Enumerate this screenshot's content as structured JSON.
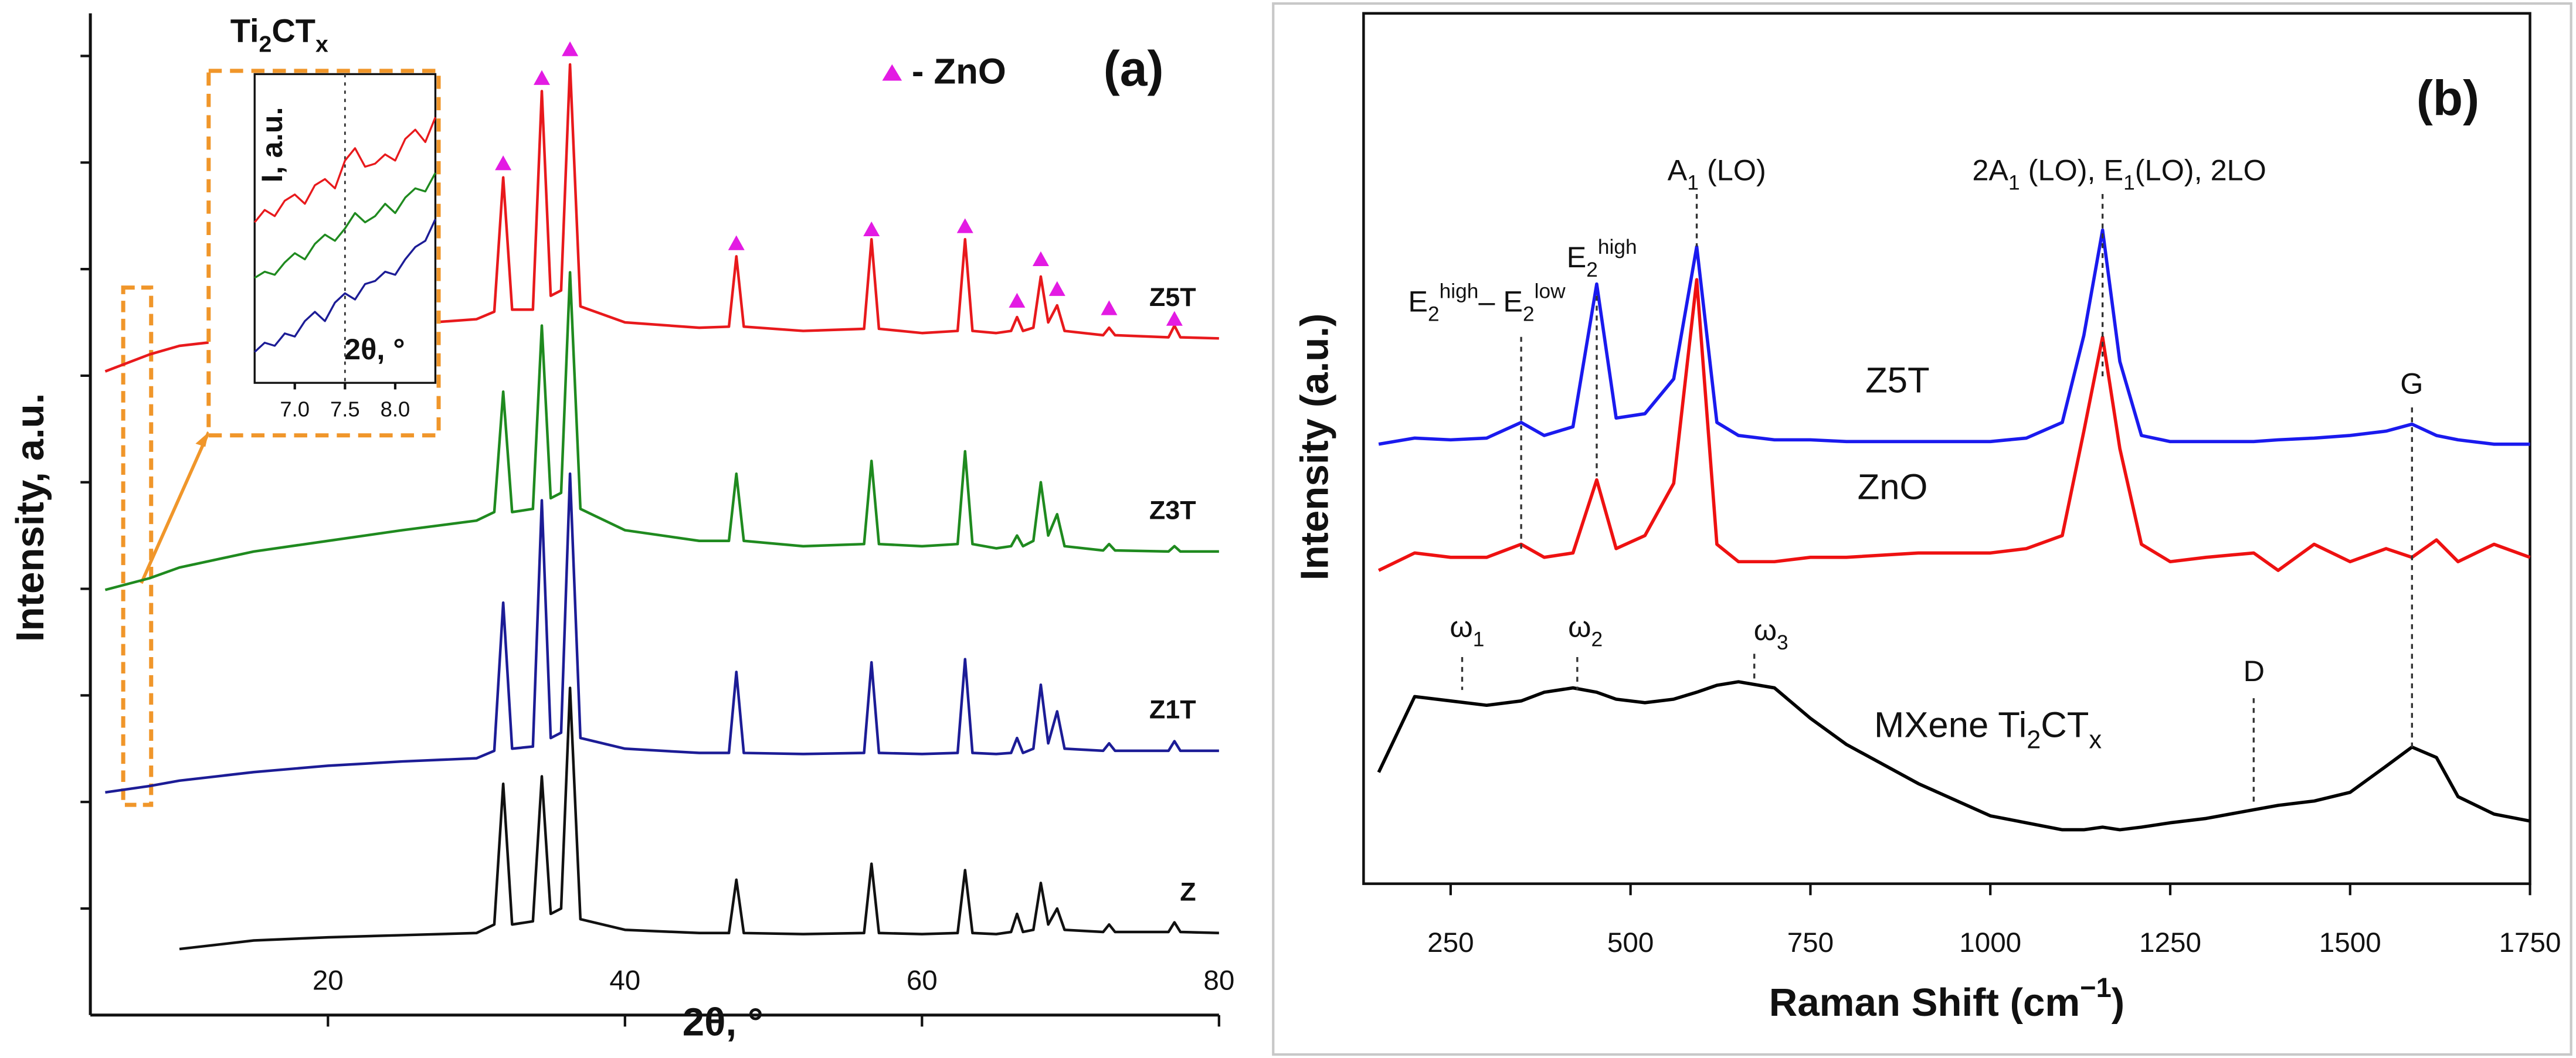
{
  "chart_data": [
    {
      "type": "line",
      "panel": "(a)",
      "ylabel": "Intensity, a.u.",
      "xlabel": "2θ, °",
      "xlim": [
        4,
        80
      ],
      "xticks": [
        20,
        40,
        60,
        80
      ],
      "ylim": [
        0,
        9.4
      ],
      "yticks": [
        1,
        2,
        3,
        4,
        5,
        6,
        7,
        8,
        9
      ],
      "x": [
        5,
        8,
        10,
        15,
        20,
        25,
        30,
        31.2,
        31.8,
        32.4,
        33.8,
        34.4,
        35.0,
        35.7,
        36.3,
        37.0,
        40,
        45,
        47.0,
        47.5,
        48.0,
        52,
        56.1,
        56.6,
        57.1,
        60,
        62.4,
        62.9,
        63.4,
        65,
        66.0,
        66.4,
        66.8,
        67.5,
        68.0,
        68.5,
        69.1,
        69.6,
        72.2,
        72.6,
        73.0,
        76.6,
        77.0,
        77.4,
        80
      ],
      "series": [
        {
          "name": "Z5T",
          "color": "#e8191c",
          "values": [
            6.04,
            6.2,
            6.28,
            6.36,
            6.42,
            6.48,
            6.53,
            6.6,
            7.86,
            6.62,
            6.62,
            8.67,
            6.75,
            6.8,
            8.92,
            6.65,
            6.5,
            6.45,
            6.46,
            7.12,
            6.46,
            6.42,
            6.44,
            7.28,
            6.44,
            6.4,
            6.42,
            7.28,
            6.42,
            6.4,
            6.42,
            6.55,
            6.42,
            6.45,
            6.93,
            6.5,
            6.66,
            6.42,
            6.38,
            6.45,
            6.38,
            6.36,
            6.47,
            6.36,
            6.35
          ]
        },
        {
          "name": "Z3T",
          "color": "#1f8a1f",
          "values": [
            3.99,
            4.1,
            4.2,
            4.35,
            4.45,
            4.55,
            4.64,
            4.72,
            5.85,
            4.72,
            4.75,
            6.47,
            4.85,
            4.9,
            6.97,
            4.75,
            4.55,
            4.45,
            4.45,
            5.08,
            4.45,
            4.4,
            4.42,
            5.2,
            4.42,
            4.4,
            4.42,
            5.29,
            4.42,
            4.38,
            4.4,
            4.5,
            4.4,
            4.45,
            5.0,
            4.5,
            4.7,
            4.4,
            4.36,
            4.42,
            4.36,
            4.35,
            4.4,
            4.35,
            4.35
          ]
        },
        {
          "name": "Z1T",
          "color": "#1c1c96",
          "values": [
            2.09,
            2.15,
            2.2,
            2.28,
            2.34,
            2.38,
            2.41,
            2.48,
            3.87,
            2.5,
            2.52,
            4.83,
            2.6,
            2.65,
            5.08,
            2.6,
            2.5,
            2.46,
            2.46,
            3.22,
            2.46,
            2.45,
            2.46,
            3.31,
            2.46,
            2.45,
            2.46,
            3.34,
            2.46,
            2.45,
            2.46,
            2.6,
            2.46,
            2.5,
            3.1,
            2.55,
            2.85,
            2.5,
            2.48,
            2.55,
            2.48,
            2.48,
            2.57,
            2.48,
            2.48
          ]
        },
        {
          "name": "Z",
          "color": "#111111",
          "values": [
            null,
            null,
            0.62,
            0.7,
            0.73,
            0.75,
            0.77,
            0.85,
            2.17,
            0.85,
            0.88,
            2.24,
            0.95,
            1.0,
            3.07,
            0.9,
            0.8,
            0.77,
            0.77,
            1.27,
            0.77,
            0.76,
            0.77,
            1.42,
            0.77,
            0.76,
            0.77,
            1.36,
            0.77,
            0.76,
            0.78,
            0.95,
            0.78,
            0.8,
            1.24,
            0.85,
            1.0,
            0.8,
            0.78,
            0.85,
            0.78,
            0.78,
            0.87,
            0.78,
            0.77
          ]
        }
      ],
      "markers": {
        "name": "- ZnO",
        "color": "#e31be3",
        "x": [
          31.8,
          34.4,
          36.3,
          47.5,
          56.6,
          62.9,
          66.4,
          68.0,
          69.1,
          72.6,
          77.0
        ],
        "y": [
          7.99,
          8.79,
          9.06,
          7.24,
          7.37,
          7.4,
          6.7,
          7.09,
          6.81,
          6.63,
          6.53
        ]
      },
      "inset": {
        "type": "line",
        "title": [
          {
            "t": "Ti"
          },
          {
            "sub": "2"
          },
          {
            "t": "CT"
          },
          {
            "sub": "x"
          }
        ],
        "ylabel": "I, a.u.",
        "xlabel": "2θ, °",
        "xlim": [
          6.6,
          8.4
        ],
        "xticks": [
          {
            "value": 7,
            "label": "7.0"
          },
          7.5,
          {
            "value": 8,
            "label": "8.0"
          }
        ],
        "ylim": [
          0,
          10
        ],
        "vline": 7.5,
        "x": [
          6.6,
          6.7,
          6.8,
          6.9,
          7.0,
          7.1,
          7.2,
          7.3,
          7.4,
          7.5,
          7.6,
          7.7,
          7.8,
          7.9,
          8.0,
          8.1,
          8.2,
          8.3,
          8.4
        ],
        "series": [
          {
            "color": "#e8191c",
            "values": [
              5.2,
              5.6,
              5.4,
              5.9,
              6.1,
              5.8,
              6.4,
              6.6,
              6.3,
              7.2,
              7.6,
              7.0,
              7.1,
              7.4,
              7.2,
              7.9,
              8.2,
              7.8,
              8.6
            ]
          },
          {
            "color": "#1f8a1f",
            "values": [
              3.4,
              3.6,
              3.5,
              3.9,
              4.2,
              4.0,
              4.5,
              4.8,
              4.6,
              5.0,
              5.5,
              5.2,
              5.4,
              5.8,
              5.5,
              6.0,
              6.3,
              6.2,
              6.8
            ]
          },
          {
            "color": "#1c1c96",
            "values": [
              1.0,
              1.3,
              1.2,
              1.6,
              1.5,
              2.0,
              2.3,
              2.0,
              2.6,
              2.9,
              2.7,
              3.2,
              3.3,
              3.6,
              3.5,
              4.0,
              4.4,
              4.6,
              5.3
            ]
          }
        ]
      }
    },
    {
      "type": "line",
      "panel": "(b)",
      "ylabel": "Intensity (a.u.)",
      "xlabel": [
        {
          "t": "Raman Shift (cm"
        },
        {
          "sup": "−1"
        },
        {
          "t": ")"
        }
      ],
      "xlim": [
        129,
        1750
      ],
      "xticks": [
        250,
        500,
        750,
        1000,
        1250,
        1500,
        1750
      ],
      "ylim": [
        0,
        10
      ],
      "x": [
        150,
        200,
        250,
        300,
        348,
        380,
        420,
        453,
        480,
        520,
        560,
        592,
        620,
        650,
        700,
        750,
        800,
        900,
        1000,
        1050,
        1100,
        1130,
        1156,
        1180,
        1210,
        1250,
        1300,
        1366,
        1400,
        1450,
        1500,
        1550,
        1586,
        1620,
        1650,
        1700,
        1750
      ],
      "series": [
        {
          "name": "Z5T",
          "color": "#1a1aee",
          "values": [
            5.05,
            5.12,
            5.1,
            5.12,
            5.3,
            5.15,
            5.25,
            6.89,
            5.35,
            5.4,
            5.8,
            7.32,
            5.3,
            5.15,
            5.1,
            5.1,
            5.08,
            5.08,
            5.08,
            5.12,
            5.3,
            6.3,
            7.51,
            6.0,
            5.15,
            5.08,
            5.08,
            5.08,
            5.1,
            5.12,
            5.15,
            5.2,
            5.28,
            5.15,
            5.1,
            5.05,
            5.05
          ]
        },
        {
          "name": "ZnO",
          "color": "#ee1111",
          "values": [
            3.6,
            3.8,
            3.75,
            3.75,
            3.9,
            3.75,
            3.8,
            4.64,
            3.85,
            4.0,
            4.6,
            6.94,
            3.9,
            3.7,
            3.7,
            3.75,
            3.75,
            3.8,
            3.8,
            3.85,
            4.0,
            5.2,
            6.28,
            5.0,
            3.9,
            3.7,
            3.75,
            3.8,
            3.6,
            3.9,
            3.7,
            3.85,
            3.75,
            3.95,
            3.7,
            3.9,
            3.75
          ]
        },
        {
          "name": [
            {
              "t": "MXene Ti"
            },
            {
              "sub": "2"
            },
            {
              "t": "CT"
            },
            {
              "sub": "x"
            }
          ],
          "color": "#000000",
          "values": [
            1.28,
            2.15,
            2.1,
            2.05,
            2.1,
            2.2,
            2.25,
            2.2,
            2.12,
            2.08,
            2.12,
            2.2,
            2.28,
            2.32,
            2.25,
            1.9,
            1.6,
            1.15,
            0.78,
            0.7,
            0.62,
            0.62,
            0.65,
            0.62,
            0.65,
            0.7,
            0.75,
            0.85,
            0.9,
            0.95,
            1.05,
            1.35,
            1.57,
            1.45,
            1.0,
            0.8,
            0.72
          ]
        }
      ],
      "annotations": [
        {
          "x": 348,
          "text": [
            {
              "t": "E"
            },
            {
              "sub": "2"
            },
            {
              "sup": "high"
            },
            {
              "t": "– E"
            },
            {
              "sub": "2"
            },
            {
              "sup": "low"
            }
          ]
        },
        {
          "x": 453,
          "text": [
            {
              "t": "E"
            },
            {
              "sub": "2"
            },
            {
              "sup": "high"
            }
          ]
        },
        {
          "x": 592,
          "text": [
            {
              "t": "A"
            },
            {
              "sub": "1"
            },
            {
              "t": " (LO)"
            }
          ]
        },
        {
          "x": 1156,
          "text": [
            {
              "t": "2A"
            },
            {
              "sub": "1"
            },
            {
              "t": " (LO), E"
            },
            {
              "sub": "1"
            },
            {
              "t": "(LO), 2LO"
            }
          ]
        },
        {
          "x": 1586,
          "text": [
            {
              "t": "G"
            }
          ]
        },
        {
          "x": 1366,
          "text": [
            {
              "t": "D"
            }
          ]
        },
        {
          "x": 266,
          "text": [
            {
              "t": "ω"
            },
            {
              "sub": "1"
            }
          ]
        },
        {
          "x": 426,
          "text": [
            {
              "t": "ω"
            },
            {
              "sub": "2"
            }
          ]
        },
        {
          "x": 672,
          "text": [
            {
              "t": "ω"
            },
            {
              "sub": "3"
            }
          ]
        }
      ]
    }
  ]
}
